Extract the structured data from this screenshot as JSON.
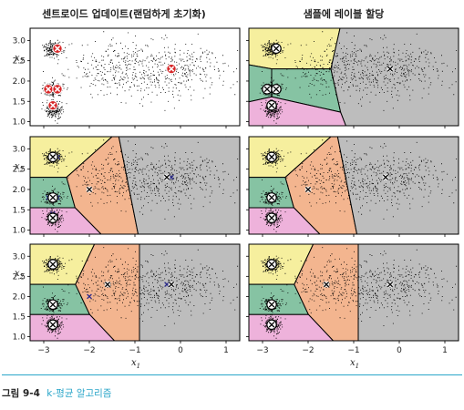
{
  "column_titles": [
    "센트로이드 업데이트(랜덤하게 초기화)",
    "샘플에 레이블 할당"
  ],
  "axis": {
    "x_ticks": [
      -3,
      -2,
      -1,
      0,
      1
    ],
    "y_ticks": [
      1.0,
      1.5,
      2.0,
      2.5,
      3.0
    ],
    "x_label_base": "x",
    "x_label_sub": "1",
    "y_label_base": "x",
    "y_label_sub": "2"
  },
  "caption": {
    "number": "그림 9-4",
    "text": "k-평균 알고리즘"
  },
  "colors": {
    "region_yellow": "#f6ef9e",
    "region_green": "#86c3a3",
    "region_pink": "#eeb2db",
    "region_orange": "#f3b58f",
    "region_gray": "#bdbdbd",
    "point": "#000000",
    "centroid_old": "#d62728",
    "centroid_new": "#ffffff"
  },
  "chart_data": {
    "type": "scatter",
    "xlim": [
      -3.3,
      1.3
    ],
    "ylim": [
      0.9,
      3.3
    ],
    "grid": false,
    "clusters": [
      {
        "cx": -2.8,
        "cy": 2.8,
        "sd": 0.1,
        "n": 220
      },
      {
        "cx": -2.8,
        "cy": 1.8,
        "sd": 0.1,
        "n": 220
      },
      {
        "cx": -2.8,
        "cy": 1.3,
        "sd": 0.1,
        "n": 220
      },
      {
        "cx": -1.5,
        "cy": 2.3,
        "sd": 0.35,
        "n": 260
      },
      {
        "cx": -0.2,
        "cy": 2.3,
        "sd": 0.38,
        "n": 360
      }
    ],
    "panels": [
      {
        "row": 1,
        "col": 1,
        "regions": false,
        "centroids_old": [],
        "centroids_new": [
          [
            -2.7,
            2.8
          ],
          [
            -2.9,
            1.8
          ],
          [
            -2.7,
            1.8
          ],
          [
            -2.8,
            1.4
          ],
          [
            -0.2,
            2.3
          ]
        ],
        "centroid_style": "red"
      },
      {
        "row": 1,
        "col": 2,
        "regions": true,
        "centroids_old": [],
        "centroids_new": [
          [
            -2.7,
            2.8
          ],
          [
            -2.9,
            1.8
          ],
          [
            -2.7,
            1.8
          ],
          [
            -2.8,
            1.4
          ],
          [
            -0.2,
            2.3
          ]
        ],
        "centroid_style": "white"
      },
      {
        "row": 2,
        "col": 1,
        "regions": true,
        "centroids_old": [
          [
            -2.7,
            2.8
          ],
          [
            -2.9,
            1.8
          ],
          [
            -2.7,
            1.8
          ],
          [
            -2.8,
            1.4
          ],
          [
            -0.2,
            2.3
          ]
        ],
        "centroids_new": [
          [
            -2.8,
            2.8
          ],
          [
            -2.8,
            1.8
          ],
          [
            -2.0,
            2.0
          ],
          [
            -2.8,
            1.3
          ],
          [
            -0.3,
            2.3
          ]
        ],
        "centroid_style": "white"
      },
      {
        "row": 2,
        "col": 2,
        "regions": true,
        "centroids_old": [],
        "centroids_new": [
          [
            -2.8,
            2.8
          ],
          [
            -2.8,
            1.8
          ],
          [
            -2.0,
            2.0
          ],
          [
            -2.8,
            1.3
          ],
          [
            -0.3,
            2.3
          ]
        ],
        "centroid_style": "white"
      },
      {
        "row": 3,
        "col": 1,
        "regions": true,
        "centroids_old": [
          [
            -2.8,
            2.8
          ],
          [
            -2.8,
            1.8
          ],
          [
            -2.0,
            2.0
          ],
          [
            -2.8,
            1.3
          ],
          [
            -0.3,
            2.3
          ]
        ],
        "centroids_new": [
          [
            -2.8,
            2.8
          ],
          [
            -2.8,
            1.8
          ],
          [
            -1.6,
            2.3
          ],
          [
            -2.8,
            1.3
          ],
          [
            -0.2,
            2.3
          ]
        ],
        "centroid_style": "white"
      },
      {
        "row": 3,
        "col": 2,
        "regions": true,
        "centroids_old": [],
        "centroids_new": [
          [
            -2.8,
            2.8
          ],
          [
            -2.8,
            1.8
          ],
          [
            -1.6,
            2.3
          ],
          [
            -2.8,
            1.3
          ],
          [
            -0.2,
            2.3
          ]
        ],
        "centroid_style": "white"
      }
    ]
  }
}
